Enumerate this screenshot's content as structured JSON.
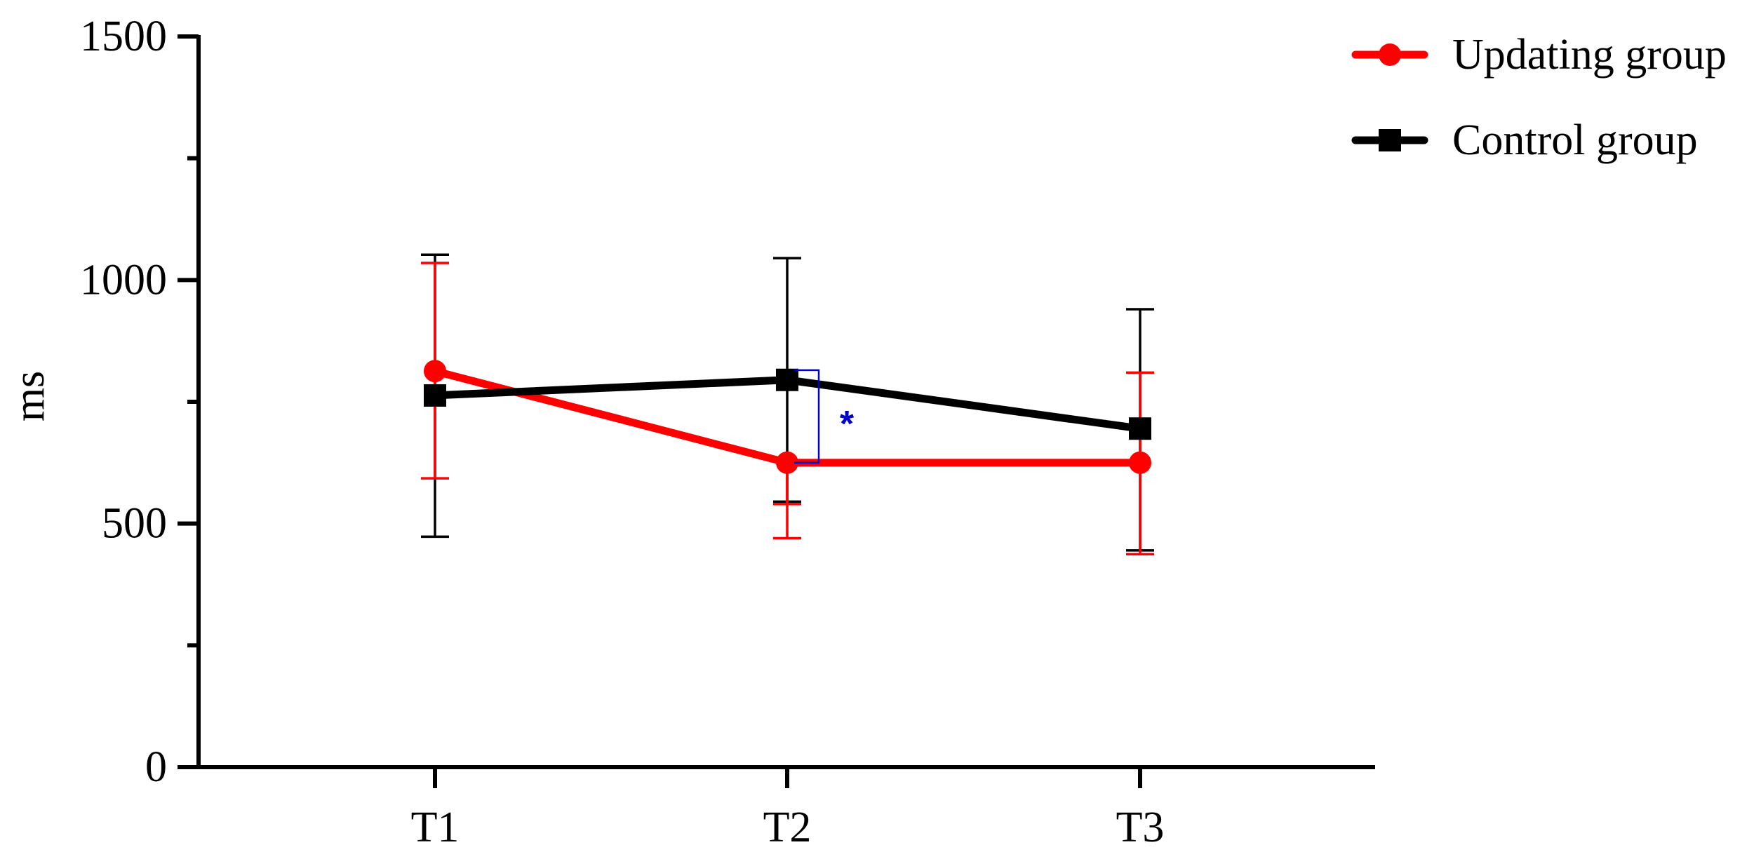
{
  "chart_data": {
    "type": "line",
    "title": "",
    "xlabel": "",
    "ylabel": "ms",
    "categories": [
      "T1",
      "T2",
      "T3"
    ],
    "ylim": [
      0,
      1500
    ],
    "yticks_labeled": [
      0,
      500,
      1000,
      1500
    ],
    "yticks_minor": [
      250,
      750,
      1250
    ],
    "grid": false,
    "legend_position": "top-right",
    "series": [
      {
        "name": "Updating group",
        "color": "#ff0000",
        "marker": "circle",
        "values": [
          813,
          625,
          625
        ],
        "error_upper": [
          1035,
          540,
          810
        ],
        "error_lower": [
          593,
          470,
          437
        ]
      },
      {
        "name": "Control group",
        "color": "#000000",
        "marker": "square",
        "values": [
          763,
          795,
          695
        ],
        "error_upper": [
          1052,
          1045,
          940
        ],
        "error_lower": [
          473,
          545,
          445
        ]
      }
    ],
    "annotations": [
      {
        "text": "*",
        "category": "T2",
        "color": "#0000cc",
        "bracket_between": [
          625,
          815
        ]
      }
    ]
  }
}
